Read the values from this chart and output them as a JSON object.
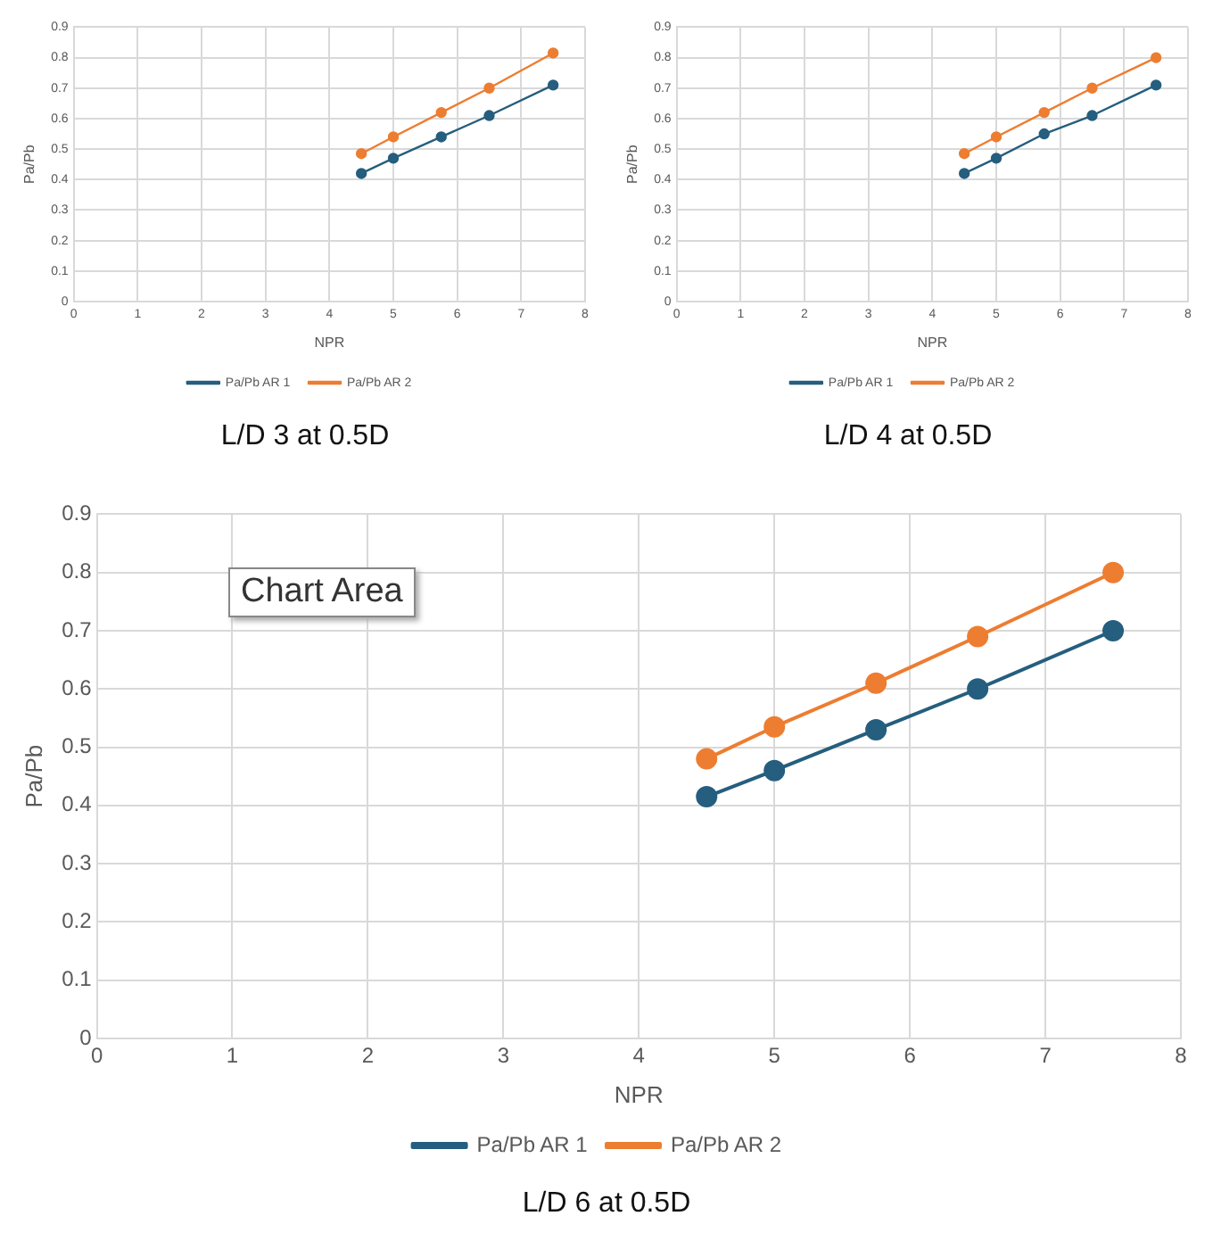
{
  "chart_data": [
    {
      "type": "line",
      "title": "L/D 3 at 0.5D",
      "xlabel": "NPR",
      "ylabel": "Pa/Pb",
      "xlim": [
        0,
        8
      ],
      "xticks": [
        0,
        1,
        2,
        3,
        4,
        5,
        6,
        7,
        8
      ],
      "ylim": [
        0,
        0.9
      ],
      "yticks": [
        0,
        0.1,
        0.2,
        0.3,
        0.4,
        0.5,
        0.6,
        0.7,
        0.8,
        0.9
      ],
      "grid": true,
      "legend": "bottom",
      "marker": "circle",
      "series": [
        {
          "name": "Pa/Pb AR 1",
          "color": "#255e7e",
          "x": [
            4.5,
            5,
            5.75,
            6.5,
            7.5
          ],
          "values": [
            0.42,
            0.47,
            0.54,
            0.61,
            0.71
          ]
        },
        {
          "name": "Pa/Pb AR 2",
          "color": "#ed7d31",
          "x": [
            4.5,
            5,
            5.75,
            6.5,
            7.5
          ],
          "values": [
            0.485,
            0.54,
            0.62,
            0.7,
            0.815
          ]
        }
      ]
    },
    {
      "type": "line",
      "title": "L/D 4 at 0.5D",
      "xlabel": "NPR",
      "ylabel": "Pa/Pb",
      "xlim": [
        0,
        8
      ],
      "xticks": [
        0,
        1,
        2,
        3,
        4,
        5,
        6,
        7,
        8
      ],
      "ylim": [
        0,
        0.9
      ],
      "yticks": [
        0,
        0.1,
        0.2,
        0.3,
        0.4,
        0.5,
        0.6,
        0.7,
        0.8,
        0.9
      ],
      "grid": true,
      "legend": "bottom",
      "marker": "circle",
      "series": [
        {
          "name": "Pa/Pb AR 1",
          "color": "#255e7e",
          "x": [
            4.5,
            5,
            5.75,
            6.5,
            7.5
          ],
          "values": [
            0.42,
            0.47,
            0.55,
            0.61,
            0.71
          ]
        },
        {
          "name": "Pa/Pb AR 2",
          "color": "#ed7d31",
          "x": [
            4.5,
            5,
            5.75,
            6.5,
            7.5
          ],
          "values": [
            0.485,
            0.54,
            0.62,
            0.7,
            0.8
          ]
        }
      ]
    },
    {
      "type": "line",
      "title": "L/D 6 at 0.5D",
      "xlabel": "NPR",
      "ylabel": "Pa/Pb",
      "annotations": [
        "Chart Area"
      ],
      "xlim": [
        0,
        8
      ],
      "xticks": [
        0,
        1,
        2,
        3,
        4,
        5,
        6,
        7,
        8
      ],
      "ylim": [
        0,
        0.9
      ],
      "yticks": [
        0,
        0.1,
        0.2,
        0.3,
        0.4,
        0.5,
        0.6,
        0.7,
        0.8,
        0.9
      ],
      "grid": true,
      "legend": "bottom",
      "marker": "circle",
      "series": [
        {
          "name": "Pa/Pb AR 1",
          "color": "#255e7e",
          "x": [
            4.5,
            5,
            5.75,
            6.5,
            7.5
          ],
          "values": [
            0.415,
            0.46,
            0.53,
            0.6,
            0.7
          ]
        },
        {
          "name": "Pa/Pb AR 2",
          "color": "#ed7d31",
          "x": [
            4.5,
            5,
            5.75,
            6.5,
            7.5
          ],
          "values": [
            0.48,
            0.535,
            0.61,
            0.69,
            0.8
          ]
        }
      ]
    }
  ]
}
